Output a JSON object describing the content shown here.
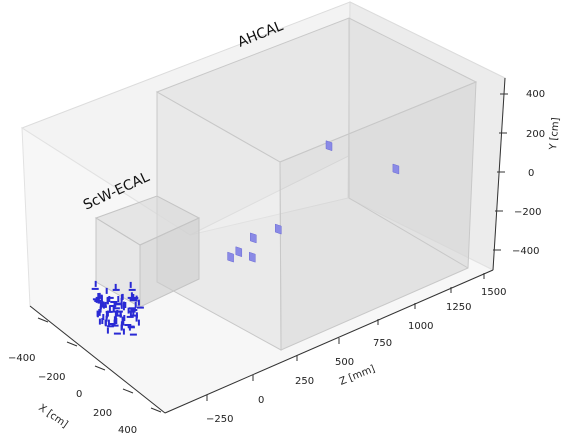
{
  "chart_data": {
    "type": "scatter",
    "projection": "3d",
    "title": "",
    "xlabel": "Z [mm]",
    "ylabel": "X [cm]",
    "zlabel": "Y [cm]",
    "xticks": [
      "−250",
      "0",
      "250",
      "500",
      "750",
      "1000",
      "1250",
      "1500"
    ],
    "yticks": [
      "−400",
      "−200",
      "0",
      "200",
      "400"
    ],
    "zticks": [
      "400",
      "200",
      "0",
      "−200",
      "−400"
    ],
    "detectors": [
      {
        "name": "ScW-ECAL"
      },
      {
        "name": "AHCAL"
      }
    ],
    "series": [
      {
        "color": "#2a2ad4",
        "points": [
          {
            "z": -300,
            "x": 30,
            "y": -60
          },
          {
            "z": -290,
            "x": 10,
            "y": -70
          },
          {
            "z": -310,
            "x": 50,
            "y": -50
          },
          {
            "z": -280,
            "x": -20,
            "y": -40
          },
          {
            "z": -300,
            "x": 60,
            "y": -80
          }
        ]
      },
      {
        "color": "#8a8ae6",
        "points": [
          {
            "z": 600,
            "x": 100,
            "y": 400
          },
          {
            "z": 900,
            "x": 120,
            "y": 150
          },
          {
            "z": 300,
            "x": 60,
            "y": 40
          },
          {
            "z": 400,
            "x": 80,
            "y": 50
          },
          {
            "z": 250,
            "x": 40,
            "y": -20
          },
          {
            "z": 220,
            "x": 30,
            "y": -40
          },
          {
            "z": 300,
            "x": 60,
            "y": -60
          }
        ]
      }
    ],
    "grid": false
  }
}
